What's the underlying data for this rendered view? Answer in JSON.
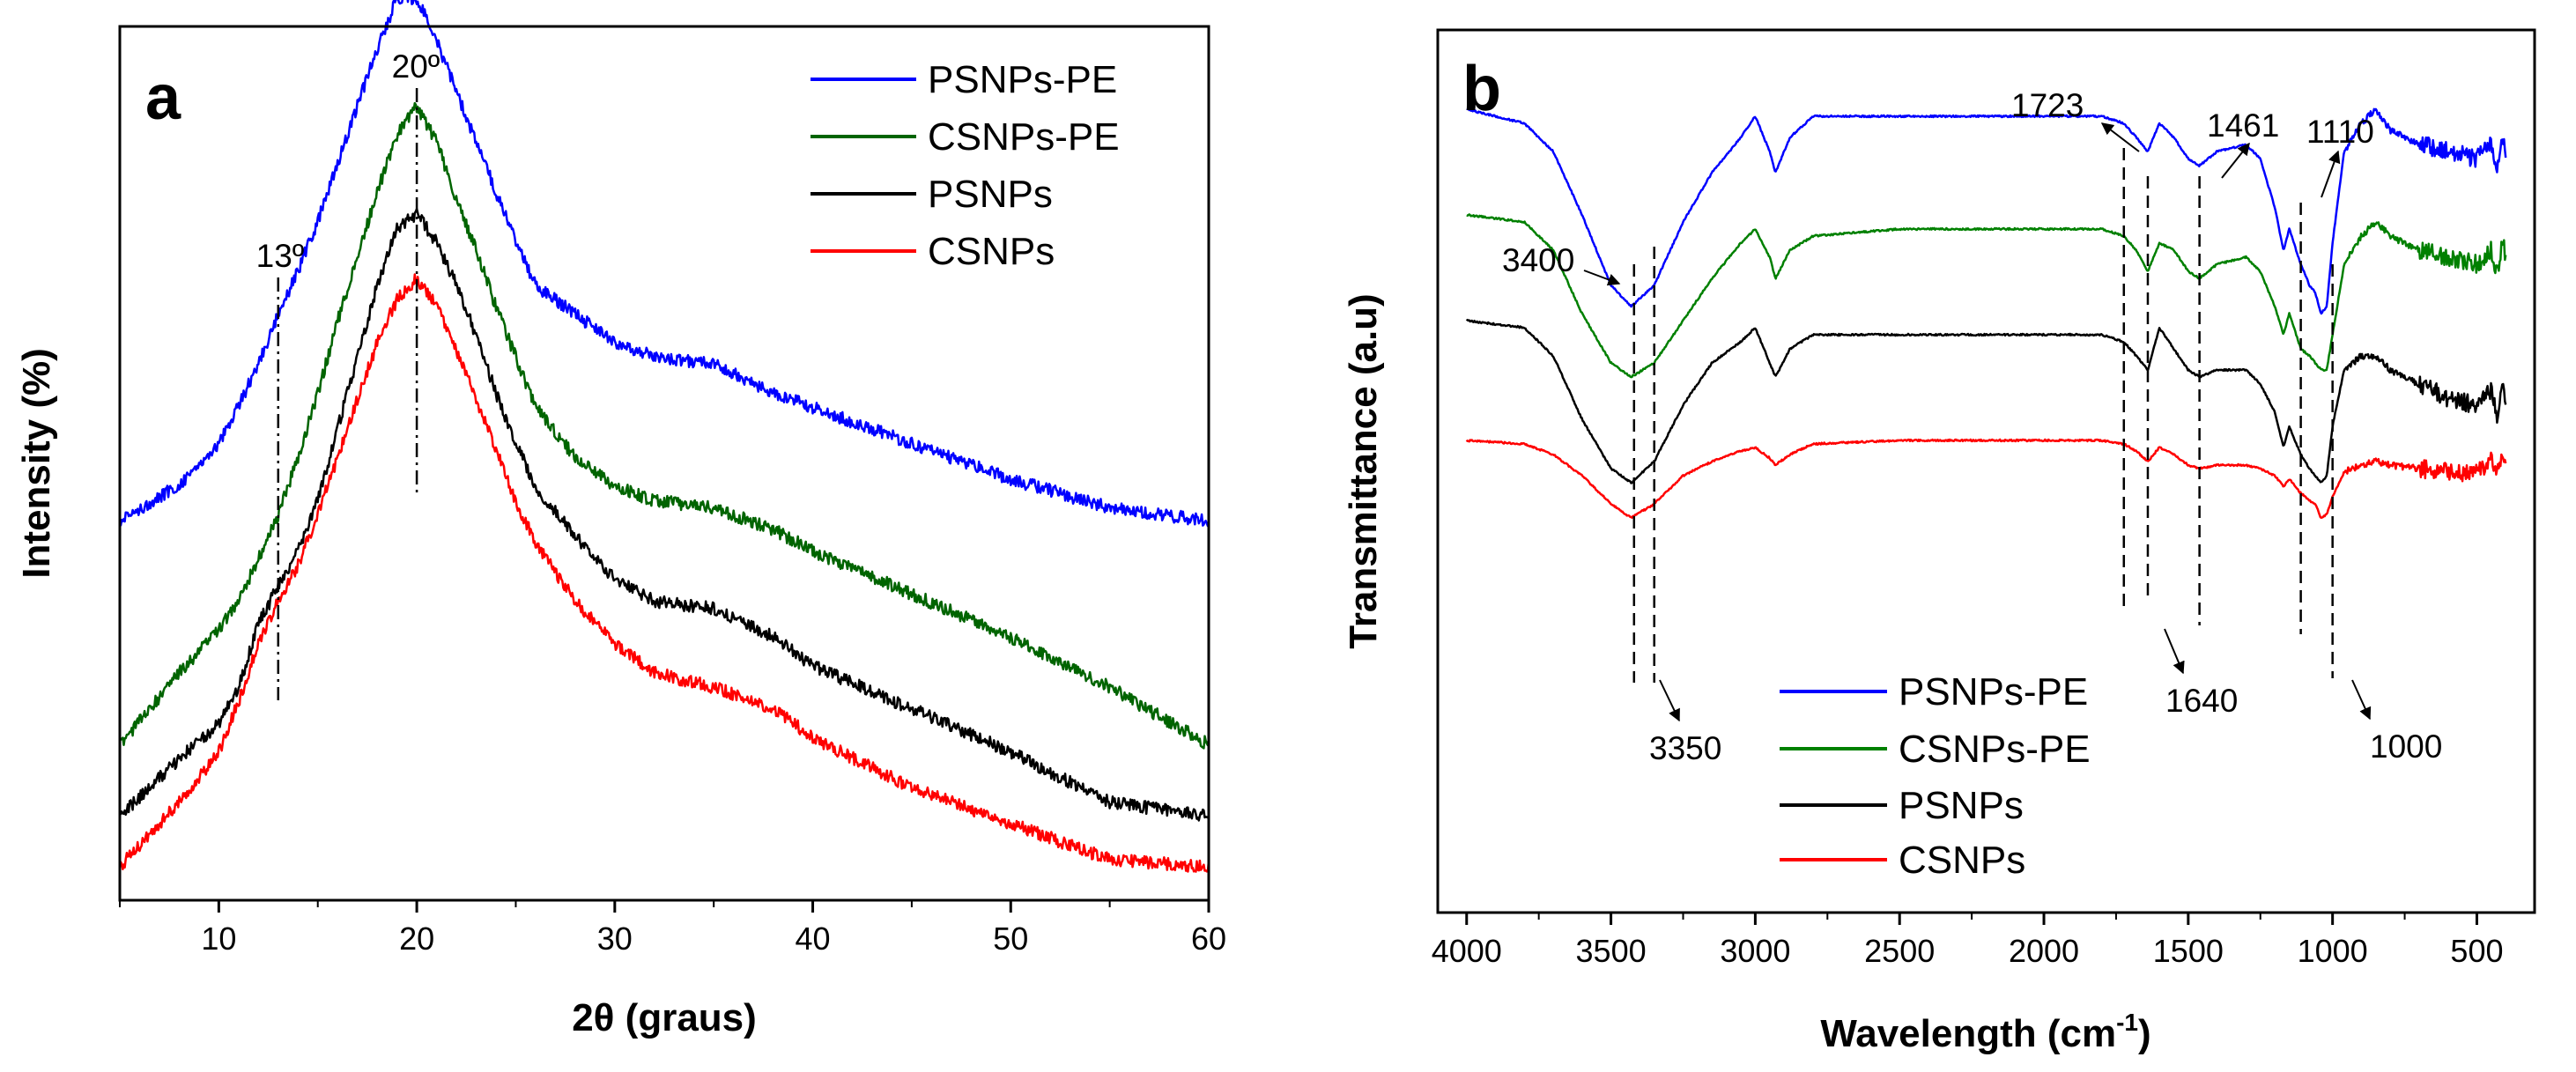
{
  "chart_data": [
    {
      "id": "a",
      "type": "line",
      "panel_label": "a",
      "xlabel": "2θ (graus)",
      "ylabel": "Intensity (%)",
      "xlim": [
        5,
        60
      ],
      "x_ticks": [
        "10",
        "20",
        "30",
        "40",
        "50",
        "60"
      ],
      "y_ticks": [],
      "legend": {
        "placement": "top-right"
      },
      "peak_labels": [
        {
          "label": "13º",
          "x": 13
        },
        {
          "label": "20º",
          "x": 20
        }
      ],
      "series": [
        {
          "name": "PSNPs-PE",
          "color": "#0000ff",
          "x": [
            5,
            8,
            10,
            11,
            12,
            13,
            14,
            15,
            16,
            17,
            18,
            19,
            20,
            21,
            22,
            23,
            24,
            25,
            26,
            28,
            30,
            32,
            35,
            38,
            40,
            45,
            50,
            55,
            60
          ],
          "values": [
            2.72,
            3.22,
            3.8,
            4.32,
            4.9,
            5.6,
            6.2,
            6.9,
            7.7,
            8.5,
            9.3,
            10.0,
            10.0,
            9.4,
            8.7,
            8.0,
            7.3,
            6.6,
            6.0,
            5.6,
            5.2,
            5.0,
            4.9,
            4.5,
            4.3,
            3.8,
            3.3,
            2.9,
            2.72
          ]
        },
        {
          "name": "CSNPs-PE",
          "color": "#006400",
          "x": [
            5,
            8,
            10,
            11,
            12,
            13,
            14,
            15,
            16,
            17,
            18,
            19,
            20,
            21,
            22,
            23,
            24,
            25,
            26,
            28,
            30,
            32,
            35,
            38,
            40,
            45,
            50,
            55,
            60
          ],
          "values": [
            -0.4,
            0.6,
            1.2,
            1.6,
            2.2,
            2.8,
            3.6,
            4.5,
            5.5,
            6.4,
            7.3,
            8.1,
            8.5,
            8.0,
            7.2,
            6.5,
            5.7,
            5.0,
            4.3,
            3.6,
            3.2,
            3.0,
            2.9,
            2.6,
            2.3,
            1.7,
            1.1,
            0.4,
            -0.4
          ]
        },
        {
          "name": "PSNPs",
          "color": "#000000",
          "x": [
            5,
            8,
            10,
            11,
            12,
            13,
            14,
            15,
            16,
            17,
            18,
            19,
            20,
            21,
            22,
            23,
            24,
            25,
            26,
            28,
            30,
            32,
            35,
            38,
            40,
            45,
            50,
            55,
            60
          ],
          "values": [
            -1.4,
            -0.6,
            -0.1,
            0.4,
            1.3,
            1.8,
            2.3,
            3.0,
            4.0,
            5.0,
            6.0,
            6.8,
            7.0,
            6.6,
            6.0,
            5.3,
            4.5,
            3.8,
            3.2,
            2.5,
            1.9,
            1.6,
            1.5,
            1.1,
            0.7,
            0.1,
            -0.5,
            -1.2,
            -1.4
          ]
        },
        {
          "name": "CSNPs",
          "color": "#ff0000",
          "x": [
            5,
            8,
            10,
            11,
            12,
            13,
            14,
            15,
            16,
            17,
            18,
            19,
            20,
            21,
            22,
            23,
            24,
            25,
            26,
            28,
            30,
            32,
            35,
            38,
            40,
            45,
            50,
            55,
            60
          ],
          "values": [
            -2.1,
            -1.2,
            -0.5,
            0.2,
            1.0,
            1.6,
            2.1,
            2.8,
            3.6,
            4.4,
            5.2,
            5.8,
            6.1,
            5.7,
            5.1,
            4.4,
            3.7,
            3.0,
            2.4,
            1.6,
            1.0,
            0.6,
            0.4,
            0.1,
            -0.3,
            -1.0,
            -1.5,
            -2.0,
            -2.1
          ]
        }
      ]
    },
    {
      "id": "b",
      "type": "line",
      "panel_label": "b",
      "xlabel": "Wavelength (cm",
      "xlabel_sup": "-1",
      "xlabel_close": ")",
      "ylabel": "Transmittance (a.u)",
      "xlim": [
        4100,
        300
      ],
      "x_ticks": [
        "4000",
        "3500",
        "3000",
        "2500",
        "2000",
        "1500",
        "1000",
        "500"
      ],
      "y_ticks": [],
      "legend": {
        "placement": "bottom-center"
      },
      "annotations": [
        {
          "label": "3400",
          "x": 3420
        },
        {
          "label": "3350",
          "x": 3350
        },
        {
          "label": "1723",
          "x": 1723
        },
        {
          "label": "1640",
          "x": 1640
        },
        {
          "label": "1461",
          "x": 1461
        },
        {
          "label": "1110",
          "x": 1110
        },
        {
          "label": "1000",
          "x": 1000
        }
      ],
      "series": [
        {
          "name": "PSNPs-PE",
          "color": "#0000ff",
          "x": [
            4000,
            3800,
            3700,
            3600,
            3500,
            3430,
            3350,
            3250,
            3150,
            3050,
            3000,
            2950,
            2930,
            2880,
            2800,
            2500,
            2000,
            1800,
            1723,
            1680,
            1640,
            1600,
            1550,
            1500,
            1461,
            1400,
            1300,
            1250,
            1200,
            1170,
            1150,
            1110,
            1080,
            1060,
            1040,
            1020,
            1000,
            960,
            900,
            850,
            800,
            700,
            600,
            500,
            450,
            430,
            410,
            400
          ],
          "values": [
            92,
            90,
            86,
            77,
            67,
            64,
            67,
            76,
            83,
            88,
            91,
            86,
            83,
            88,
            91,
            91,
            91,
            91,
            90,
            88,
            86,
            90,
            88,
            85,
            84,
            86,
            87,
            85,
            78,
            72,
            75,
            70,
            67,
            66,
            63,
            64,
            73,
            86,
            90,
            92,
            89,
            87,
            86,
            85,
            87,
            84,
            88,
            86
          ]
        },
        {
          "name": "CSNPs-PE",
          "color": "#008000",
          "x": [
            4000,
            3800,
            3700,
            3600,
            3500,
            3430,
            3350,
            3250,
            3150,
            3050,
            3000,
            2950,
            2930,
            2880,
            2800,
            2500,
            2000,
            1800,
            1723,
            1680,
            1640,
            1600,
            1550,
            1500,
            1461,
            1400,
            1300,
            1250,
            1200,
            1170,
            1150,
            1110,
            1080,
            1060,
            1040,
            1020,
            1000,
            960,
            900,
            850,
            800,
            700,
            600,
            500,
            450,
            430,
            410,
            400
          ],
          "values": [
            77,
            76,
            72,
            63,
            56,
            54,
            56,
            62,
            68,
            73,
            75,
            71,
            68,
            72,
            74,
            75,
            75,
            75,
            74,
            72,
            69,
            73,
            72,
            69,
            68,
            70,
            71,
            69,
            64,
            60,
            63,
            58,
            57,
            56,
            55,
            55,
            60,
            70,
            74,
            76,
            74,
            72,
            71,
            70,
            72,
            69,
            73,
            71
          ]
        },
        {
          "name": "PSNPs",
          "color": "#000000",
          "x": [
            4000,
            3800,
            3700,
            3600,
            3500,
            3430,
            3350,
            3250,
            3150,
            3050,
            3000,
            2950,
            2930,
            2880,
            2800,
            2500,
            2000,
            1800,
            1723,
            1680,
            1640,
            1600,
            1550,
            1500,
            1461,
            1400,
            1300,
            1250,
            1200,
            1170,
            1150,
            1110,
            1080,
            1060,
            1040,
            1020,
            1000,
            960,
            900,
            850,
            800,
            700,
            600,
            500,
            450,
            430,
            410,
            400
          ],
          "values": [
            62,
            61,
            57,
            48,
            41,
            39,
            42,
            50,
            56,
            59,
            61,
            56,
            54,
            58,
            60,
            60,
            60,
            60,
            59,
            57,
            55,
            61,
            58,
            55,
            54,
            55,
            55,
            53,
            49,
            44,
            47,
            43,
            41,
            40,
            39,
            40,
            47,
            55,
            57,
            57,
            55,
            53,
            51,
            50,
            52,
            48,
            53,
            49
          ]
        },
        {
          "name": "CSNPs",
          "color": "#ff0000",
          "x": [
            4000,
            3800,
            3700,
            3600,
            3500,
            3430,
            3350,
            3250,
            3150,
            3050,
            3000,
            2950,
            2930,
            2880,
            2800,
            2500,
            2000,
            1800,
            1723,
            1680,
            1640,
            1600,
            1550,
            1500,
            1461,
            1400,
            1300,
            1250,
            1200,
            1170,
            1150,
            1110,
            1080,
            1060,
            1040,
            1020,
            1000,
            960,
            900,
            850,
            800,
            700,
            600,
            500,
            450,
            430,
            410,
            400
          ],
          "values": [
            45,
            44.5,
            43,
            40,
            36,
            34,
            36,
            40,
            42,
            43.5,
            44,
            42.5,
            41.5,
            43,
            44.5,
            45,
            45,
            45,
            44.5,
            43.5,
            42,
            44,
            43,
            41.5,
            41,
            41.5,
            41.5,
            41,
            40,
            38.5,
            39.5,
            37.5,
            36.5,
            36,
            34,
            34.5,
            37,
            40.5,
            41.5,
            42,
            41.5,
            41,
            40.5,
            40.5,
            42,
            40,
            44,
            41
          ]
        }
      ]
    }
  ]
}
